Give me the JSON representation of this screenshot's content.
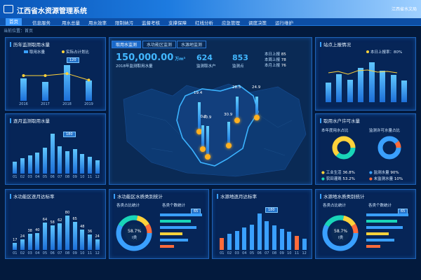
{
  "app": {
    "title": "江西省水资源管理系统",
    "user": "江西省水文局"
  },
  "nav": [
    {
      "label": "首页",
      "active": true
    },
    {
      "label": "信息服务"
    },
    {
      "label": "用水总量"
    },
    {
      "label": "用水效率"
    },
    {
      "label": "限制纳污"
    },
    {
      "label": "监督考核"
    },
    {
      "label": "支撑保障"
    },
    {
      "label": "红线分析"
    },
    {
      "label": "应急管理"
    },
    {
      "label": "调度决策"
    },
    {
      "label": "运行维护"
    }
  ],
  "breadcrumb": "当前位置：首页",
  "panels": {
    "yearly": {
      "title": "历年监测取用水量",
      "legend": [
        "取用水量",
        "实际占计划比"
      ],
      "callout": "120"
    },
    "monthly": {
      "title": "逐月监测取用水量",
      "callout": "180"
    },
    "sites": {
      "title": "站点上报情况",
      "legend": "本日上报率：80%"
    },
    "permit": {
      "title": "取用水户许可水量",
      "sub1": "本年度用水占比",
      "sub2": "监测许可水量占比",
      "items1": [
        {
          "name": "工业生活",
          "pct": "36.8%"
        },
        {
          "name": "农田灌溉",
          "pct": "53.2%"
        }
      ],
      "items2": [
        {
          "name": "监测水量",
          "pct": "90%"
        },
        {
          "name": "未监测水量",
          "pct": "10%"
        }
      ]
    },
    "funczone": {
      "title": "水功能区逐月达标率"
    },
    "funcquality": {
      "title": "水功能区水质类别统计",
      "sub1": "各类占比统计",
      "sub2": "各类个数统计",
      "center_pct": "58.7%",
      "center_label": "I类",
      "callout": "65"
    },
    "source": {
      "title": "水源地逐月达标率",
      "callout": "180"
    },
    "sourcequality": {
      "title": "水源地水质类别统计",
      "sub1": "各类占比统计",
      "sub2": "各类个数统计",
      "center_pct": "58.7%",
      "center_label": "I类",
      "callout": "65"
    }
  },
  "map": {
    "tabs": [
      "取用水监测",
      "水功能区监测",
      "水源地监测"
    ],
    "total": "150,000.00",
    "total_unit": "万m³",
    "total_label": "2018年监测取用水量",
    "stat1": {
      "value": "624",
      "label": "监测取水户"
    },
    "stat2": {
      "value": "853",
      "label": "监测点"
    },
    "reports": [
      "本日上报",
      "本周上报",
      "本月上报"
    ],
    "report_values": [
      "85",
      "78",
      "76"
    ],
    "markers": [
      "19.4",
      "28.5",
      "24.9",
      "30.3",
      "40.9",
      "30.9"
    ]
  },
  "chart_data": [
    {
      "type": "bar",
      "title": "历年监测取用水量",
      "categories": [
        "2016",
        "2017",
        "2018",
        "2019"
      ],
      "values": [
        75,
        65,
        120,
        68
      ],
      "series_line": [
        85,
        85,
        92,
        70
      ]
    },
    {
      "type": "bar",
      "title": "逐月监测取用水量",
      "categories": [
        "01",
        "02",
        "03",
        "04",
        "05",
        "06",
        "07",
        "08",
        "09",
        "10",
        "11",
        "12"
      ],
      "values": [
        55,
        70,
        82,
        95,
        118,
        180,
        125,
        100,
        110,
        90,
        75,
        60
      ]
    },
    {
      "type": "bar",
      "title": "站点上报情况",
      "values": [
        55,
        78,
        62,
        95,
        110,
        88,
        75,
        60
      ]
    },
    {
      "type": "bar",
      "title": "水功能区逐月达标率",
      "categories": [
        "01",
        "02",
        "03",
        "04",
        "05",
        "06",
        "07",
        "08",
        "09",
        "10",
        "11",
        "12"
      ],
      "values": [
        17,
        24,
        38,
        40,
        64,
        58,
        62,
        80,
        65,
        48,
        36,
        24
      ]
    },
    {
      "type": "bar",
      "title": "水源地逐月达标率",
      "categories": [
        "01",
        "02",
        "03",
        "04",
        "05",
        "06",
        "07",
        "08",
        "09",
        "10",
        "11",
        "12"
      ],
      "values": [
        60,
        80,
        95,
        110,
        125,
        180,
        140,
        120,
        105,
        90,
        70,
        55
      ]
    }
  ]
}
